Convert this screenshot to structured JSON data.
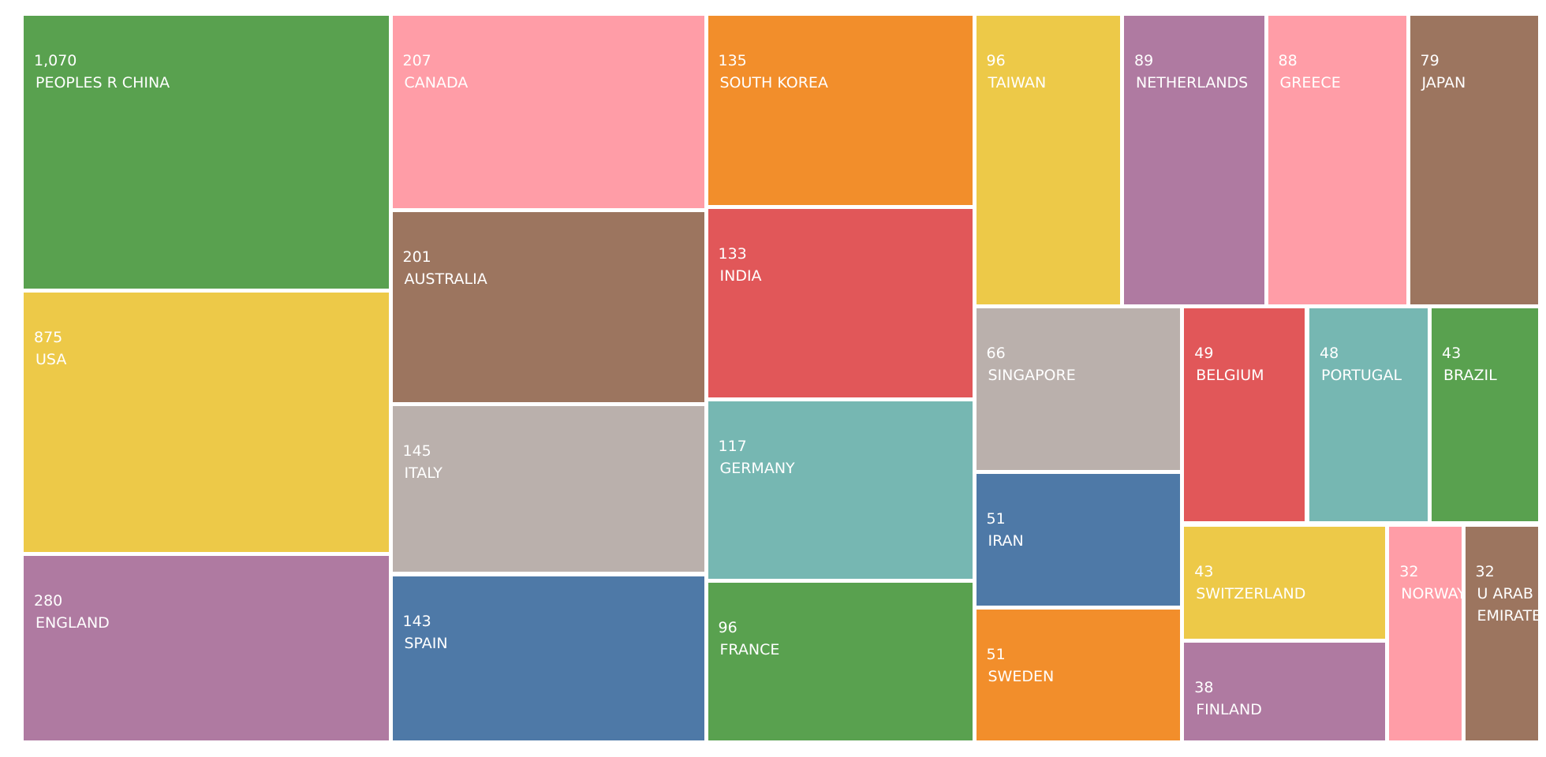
{
  "chart_data": {
    "type": "treemap",
    "categories": [
      "PEOPLES R CHINA",
      "USA",
      "ENGLAND",
      "CANADA",
      "AUSTRALIA",
      "ITALY",
      "SPAIN",
      "SOUTH KOREA",
      "INDIA",
      "GERMANY",
      "FRANCE",
      "TAIWAN",
      "NETHERLANDS",
      "GREECE",
      "JAPAN",
      "SINGAPORE",
      "BELGIUM",
      "PORTUGAL",
      "BRAZIL",
      "IRAN",
      "SWEDEN",
      "SWITZERLAND",
      "FINLAND",
      "NORWAY",
      "U ARAB EMIRATES"
    ],
    "values": [
      1070,
      875,
      280,
      207,
      201,
      145,
      143,
      135,
      133,
      117,
      96,
      96,
      89,
      88,
      79,
      66,
      49,
      48,
      43,
      51,
      51,
      43,
      38,
      32,
      32
    ],
    "value_labels": [
      "1,070",
      "875",
      "280",
      "207",
      "201",
      "145",
      "143",
      "135",
      "133",
      "117",
      "96",
      "96",
      "89",
      "88",
      "79",
      "66",
      "49",
      "48",
      "43",
      "51",
      "51",
      "43",
      "38",
      "32",
      "32"
    ],
    "colors": [
      "#59a14f",
      "#edc948",
      "#af7aa1",
      "#ff9da7",
      "#9c755f",
      "#bab0ac",
      "#4e79a7",
      "#f28e2b",
      "#e15759",
      "#76b7b2",
      "#59a14f",
      "#edc948",
      "#af7aa1",
      "#ff9da7",
      "#9c755f",
      "#bab0ac",
      "#e15759",
      "#76b7b2",
      "#59a14f",
      "#4e79a7",
      "#f28e2b",
      "#edc948",
      "#af7aa1",
      "#ff9da7",
      "#9c755f"
    ]
  }
}
